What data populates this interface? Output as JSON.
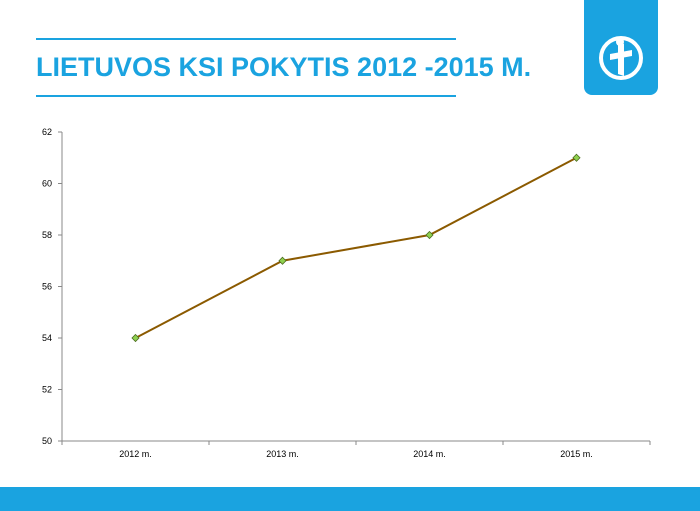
{
  "slide": {
    "title": "LIETUVOS KSI POKYTIS 2012 -2015 M.",
    "accent_color": "#1aa3e0",
    "logo_icon": "transparency-international-logo-icon"
  },
  "chart_data": {
    "type": "line",
    "title": "",
    "xlabel": "",
    "ylabel": "",
    "categories": [
      "2012 m.",
      "2013 m.",
      "2014 m.",
      "2015 m."
    ],
    "series": [
      {
        "values": [
          54,
          57,
          58,
          61
        ],
        "color": "#8b5a00",
        "marker_color": "#8fd14f"
      }
    ],
    "ylim": [
      50,
      62
    ],
    "yticks": [
      50,
      52,
      54,
      56,
      58,
      60,
      62
    ],
    "grid": false,
    "legend": "none"
  }
}
